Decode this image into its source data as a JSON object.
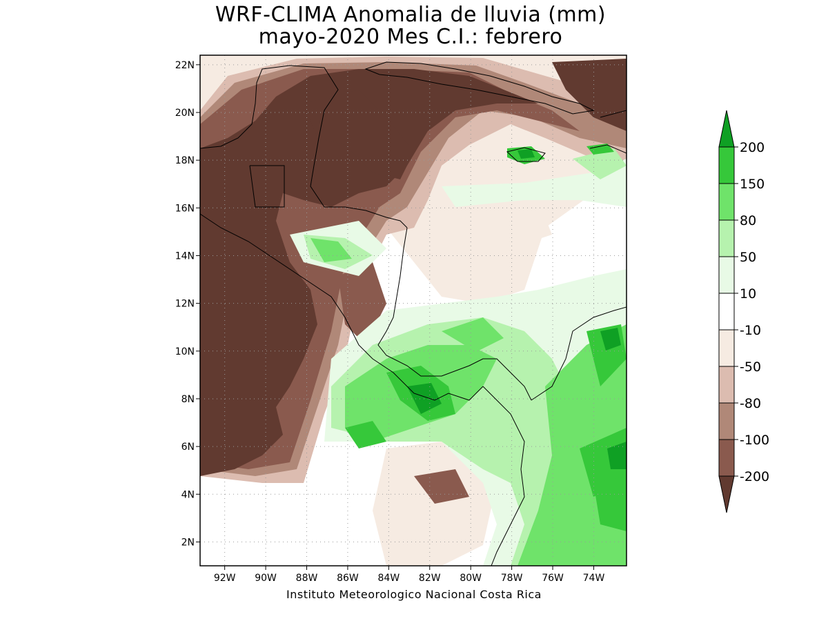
{
  "title": {
    "line1": "WRF-CLIMA Anomalia de lluvia (mm)",
    "line2": "mayo-2020 Mes C.I.: febrero"
  },
  "credit": "Instituto Meteorologico Nacional Costa Rica",
  "map": {
    "lon_range": [
      -93.2,
      -72.4
    ],
    "lat_range": [
      1.0,
      22.4
    ],
    "lon_ticks": [
      {
        "value": -92,
        "label": "92W"
      },
      {
        "value": -90,
        "label": "90W"
      },
      {
        "value": -88,
        "label": "88W"
      },
      {
        "value": -86,
        "label": "86W"
      },
      {
        "value": -84,
        "label": "84W"
      },
      {
        "value": -82,
        "label": "82W"
      },
      {
        "value": -80,
        "label": "80W"
      },
      {
        "value": -78,
        "label": "78W"
      },
      {
        "value": -76,
        "label": "76W"
      },
      {
        "value": -74,
        "label": "74W"
      }
    ],
    "lat_ticks": [
      {
        "value": 2,
        "label": "2N"
      },
      {
        "value": 4,
        "label": "4N"
      },
      {
        "value": 6,
        "label": "6N"
      },
      {
        "value": 8,
        "label": "8N"
      },
      {
        "value": 10,
        "label": "10N"
      },
      {
        "value": 12,
        "label": "12N"
      },
      {
        "value": 14,
        "label": "14N"
      },
      {
        "value": 16,
        "label": "16N"
      },
      {
        "value": 18,
        "label": "18N"
      },
      {
        "value": 20,
        "label": "20N"
      },
      {
        "value": 22,
        "label": "22N"
      }
    ],
    "grid": true
  },
  "legend": {
    "units": "mm",
    "colors": [
      "#613a30",
      "#8a5a4e",
      "#b08878",
      "#dcbcb0",
      "#f6ebe2",
      "#ffffff",
      "#e8fae6",
      "#b6f2ae",
      "#6fe36a",
      "#36c83a",
      "#0fa024"
    ],
    "labels": [
      "200",
      "150",
      "80",
      "50",
      "10",
      "-10",
      "-50",
      "-80",
      "-100",
      "-200"
    ]
  }
}
